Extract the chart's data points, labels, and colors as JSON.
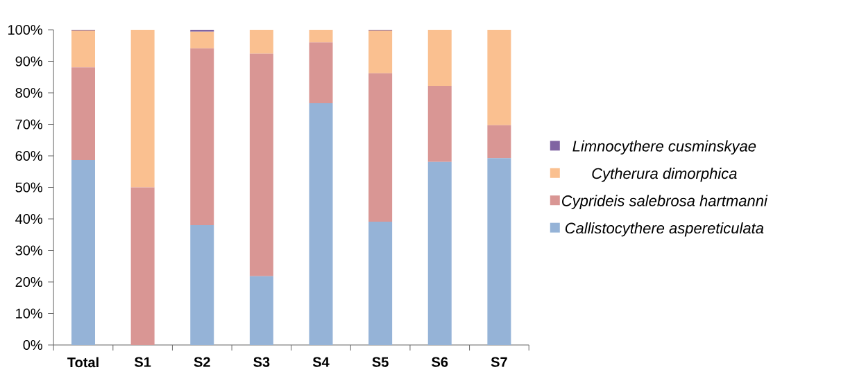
{
  "chart_data": {
    "type": "bar",
    "stacked": true,
    "categories": [
      "Total",
      "S1",
      "S2",
      "S3",
      "S4",
      "S5",
      "S6",
      "S7"
    ],
    "series": [
      {
        "name": "*Callistocythere aspereticulata*",
        "color": "#95b3d7",
        "values": [
          58.7,
          0,
          38.0,
          21.8,
          76.7,
          39.1,
          58.1,
          59.3
        ]
      },
      {
        "name": "*Cyprideis salebrosa hartmanni*",
        "color": "#d99694",
        "values": [
          29.4,
          50.0,
          56.1,
          70.6,
          19.3,
          47.1,
          24.1,
          10.4
        ]
      },
      {
        "name": "*Cytherura dimorphica*",
        "color": "#fac090",
        "values": [
          11.7,
          50.0,
          5.3,
          7.6,
          4.0,
          13.6,
          17.8,
          30.3
        ]
      },
      {
        "name": "*Limnocythere cusminskyae*",
        "color": "#8064a2",
        "values": [
          0.2,
          0,
          0.6,
          0,
          0,
          0.2,
          0,
          0
        ]
      }
    ],
    "ylim": [
      0,
      100
    ],
    "yticks": [
      {
        "value": 0,
        "label": "0%"
      },
      {
        "value": 10,
        "label": "10%"
      },
      {
        "value": 20,
        "label": "20%"
      },
      {
        "value": 30,
        "label": "30%"
      },
      {
        "value": 40,
        "label": "40%"
      },
      {
        "value": 50,
        "label": "50%"
      },
      {
        "value": 60,
        "label": "60%"
      },
      {
        "value": 70,
        "label": "70%"
      },
      {
        "value": 80,
        "label": "80%"
      },
      {
        "value": 90,
        "label": "90%"
      },
      {
        "value": 100,
        "label": "100%"
      }
    ],
    "grid": false,
    "legend": "right"
  }
}
